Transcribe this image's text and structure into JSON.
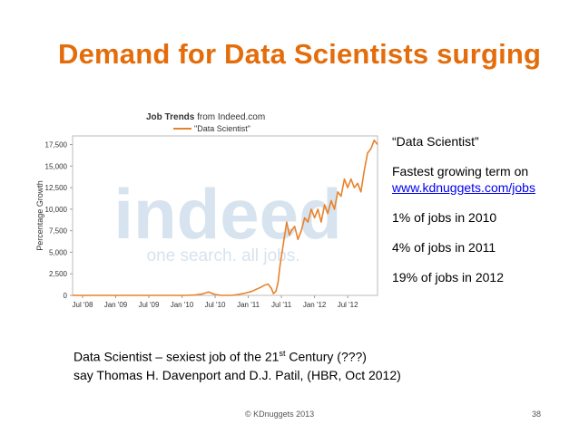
{
  "slide": {
    "title": "Demand for Data Scientists surging",
    "side_notes": {
      "term": "“Data Scientist”",
      "fastest_line": "Fastest growing term on",
      "link": "www.kdnuggets.com/jobs",
      "stat_2010": "1% of jobs in 2010",
      "stat_2011": "4% of jobs in 2011",
      "stat_2012": "19% of jobs in 2012"
    },
    "quote": {
      "line1_pre": "Data Scientist – sexiest job of the 21",
      "line1_sup": "st",
      "line1_post": " Century  (???)",
      "line2": "say Thomas H. Davenport and D.J. Patil, (HBR, Oct 2012)"
    },
    "footer": "© KDnuggets 2013",
    "page_number": "38"
  },
  "chart_data": {
    "type": "line",
    "title_bold": "Job Trends",
    "title_rest": " from Indeed.com",
    "legend": "\"Data Scientist\"",
    "ylabel": "Percentage Growth",
    "watermark_logo": "indeed",
    "watermark_tagline": "one search. all jobs.",
    "ylim": [
      0,
      18500
    ],
    "yticks": [
      0,
      2500,
      5000,
      7500,
      10000,
      12500,
      15000,
      17500
    ],
    "ytick_labels": [
      "0",
      "2,500",
      "5,000",
      "7,500",
      "10,000",
      "12,500",
      "15,000",
      "17,500"
    ],
    "xlim": [
      2008.35,
      2012.95
    ],
    "xticks": [
      2008.5,
      2009.0,
      2009.5,
      2010.0,
      2010.5,
      2011.0,
      2011.5,
      2012.0,
      2012.5
    ],
    "xtick_labels": [
      "Jul '08",
      "Jan '09",
      "Jul '09",
      "Jan '10",
      "Jul '10",
      "Jan '11",
      "Jul '11",
      "Jan '12",
      "Jul '12"
    ],
    "line_color": "#e8822a",
    "series": [
      {
        "x": [
          2008.35,
          2008.5,
          2008.7,
          2008.9,
          2009.1,
          2009.3,
          2009.5,
          2009.7,
          2009.9,
          2010.05,
          2010.2,
          2010.3,
          2010.4,
          2010.5,
          2010.6,
          2010.75,
          2010.85,
          2010.95,
          2011.05,
          2011.12,
          2011.18,
          2011.25,
          2011.3,
          2011.35,
          2011.38,
          2011.42,
          2011.45,
          2011.48,
          2011.52,
          2011.55,
          2011.58,
          2011.62,
          2011.65,
          2011.7,
          2011.75,
          2011.8,
          2011.85,
          2011.9,
          2011.95,
          2012.0,
          2012.05,
          2012.1,
          2012.15,
          2012.2,
          2012.25,
          2012.3,
          2012.35,
          2012.4,
          2012.45,
          2012.5,
          2012.55,
          2012.6,
          2012.65,
          2012.7,
          2012.75,
          2012.8,
          2012.85,
          2012.9,
          2012.95
        ],
        "y": [
          0,
          0,
          0,
          0,
          0,
          0,
          0,
          0,
          0,
          0,
          50,
          150,
          400,
          100,
          0,
          0,
          100,
          250,
          450,
          700,
          900,
          1200,
          1300,
          800,
          200,
          500,
          1500,
          3500,
          5500,
          7000,
          8500,
          7000,
          7500,
          8000,
          6500,
          7500,
          9000,
          8500,
          10000,
          9000,
          10000,
          8500,
          10500,
          9500,
          11000,
          10000,
          12000,
          11500,
          13500,
          12500,
          13500,
          12500,
          13000,
          12000,
          14500,
          16500,
          17000,
          18000,
          17500
        ]
      }
    ]
  }
}
